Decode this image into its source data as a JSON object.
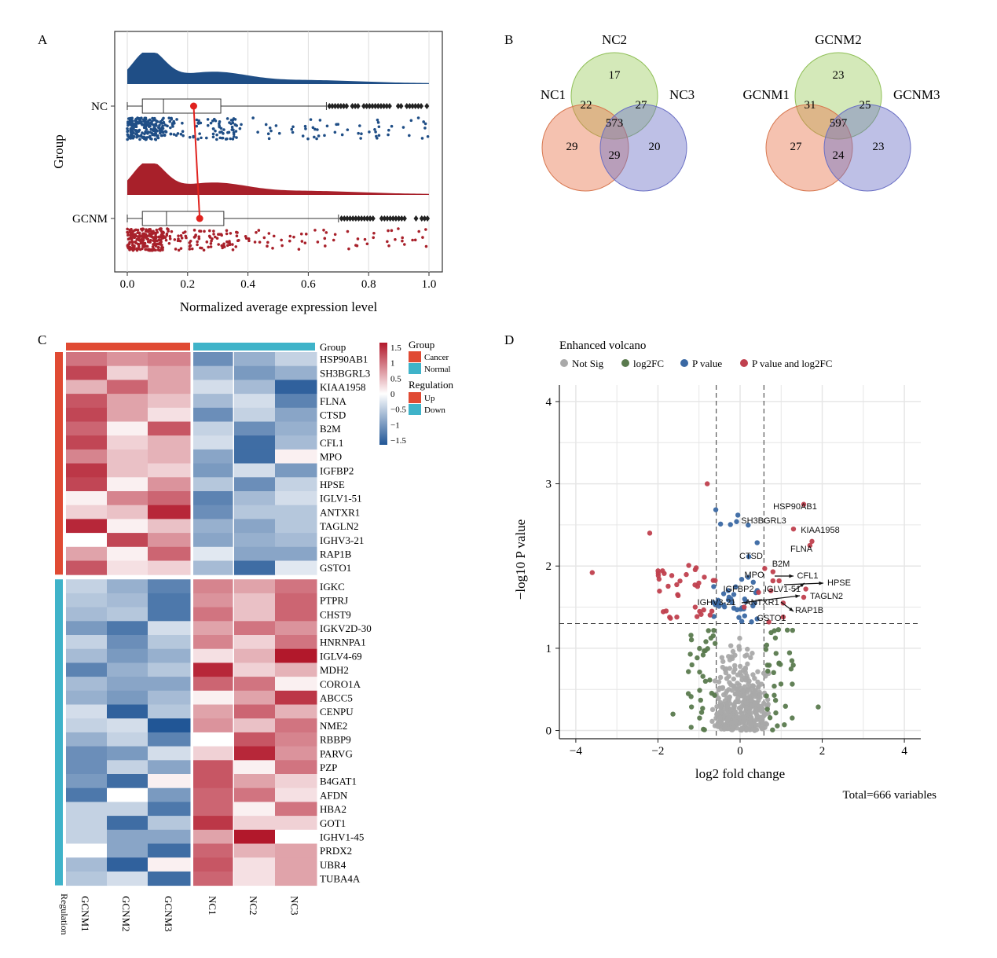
{
  "panels": {
    "a": "A",
    "b": "B",
    "c": "C",
    "d": "D"
  },
  "colors": {
    "nc": "#1f4e86",
    "gcnm": "#a8202a",
    "cancer": "#e04a33",
    "normal": "#3fb3c9",
    "up_red": "#c0303a",
    "down_blue": "#2b5c93",
    "not_sig": "#a9a9a9",
    "log2fc": "#5a7a4e",
    "pvalue": "#3a68a3",
    "both": "#c0404e"
  },
  "panel_a": {
    "chart_data": {
      "type": "raincloud",
      "xlabel": "Normalized average expression level",
      "ylabel": "Group",
      "xlim": [
        0.0,
        1.0
      ],
      "xticks": [
        "0.0",
        "0.2",
        "0.4",
        "0.6",
        "0.8",
        "1.0"
      ],
      "groups": [
        {
          "name": "NC",
          "box": {
            "min": 0.0,
            "q1": 0.05,
            "median": 0.12,
            "q3": 0.31,
            "whisker_high": 0.66
          },
          "mean": 0.22
        },
        {
          "name": "GCNM",
          "box": {
            "min": 0.0,
            "q1": 0.05,
            "median": 0.13,
            "q3": 0.32,
            "whisker_high": 0.7
          },
          "mean": 0.24
        }
      ],
      "grid": true
    }
  },
  "panel_b": {
    "chart_data": [
      {
        "type": "venn",
        "sets": [
          "NC1",
          "NC2",
          "NC3"
        ],
        "regions": {
          "only_2": 17,
          "1_2": 22,
          "2_3": 27,
          "all": 573,
          "only_1": 29,
          "1_3": 29,
          "only_3": 20
        }
      },
      {
        "type": "venn",
        "sets": [
          "GCNM1",
          "GCNM2",
          "GCNM3"
        ],
        "regions": {
          "only_2": 23,
          "1_2": 31,
          "2_3": 25,
          "all": 597,
          "only_1": 27,
          "1_3": 24,
          "only_3": 23
        }
      }
    ]
  },
  "panel_c": {
    "chart_data": {
      "type": "heatmap",
      "columns": [
        "GCNM1",
        "GCNM2",
        "GCNM3",
        "NC1",
        "NC2",
        "NC3"
      ],
      "column_groups": [
        "Cancer",
        "Cancer",
        "Cancer",
        "Normal",
        "Normal",
        "Normal"
      ],
      "rows": [
        "HSP90AB1",
        "SH3BGRL3",
        "KIAA1958",
        "FLNA",
        "CTSD",
        "B2M",
        "CFL1",
        "MPO",
        "IGFBP2",
        "HPSE",
        "IGLV1-51",
        "ANTXR1",
        "TAGLN2",
        "IGHV3-21",
        "RAP1B",
        "GSTO1",
        "IGKC",
        "PTPRJ",
        "CHST9",
        "IGKV2D-30",
        "HNRNPA1",
        "IGLV4-69",
        "MDH2",
        "CORO1A",
        "ABCC5",
        "CENPU",
        "NME2",
        "RBBP9",
        "PARVG",
        "PZP",
        "B4GAT1",
        "AFDN",
        "HBA2",
        "GOT1",
        "IGHV1-45",
        "PRDX2",
        "UBR4",
        "TUBA4A"
      ],
      "row_regulation_up_count": 16,
      "values": [
        [
          0.9,
          0.7,
          0.8,
          -1.0,
          -0.7,
          -0.4
        ],
        [
          1.2,
          0.3,
          0.6,
          -0.6,
          -0.9,
          -0.7
        ],
        [
          0.5,
          1.0,
          0.6,
          -0.3,
          -0.6,
          -1.4
        ],
        [
          1.1,
          0.6,
          0.4,
          -0.6,
          -0.3,
          -1.1
        ],
        [
          1.2,
          0.6,
          0.2,
          -1.0,
          -0.4,
          -0.8
        ],
        [
          1.0,
          0.1,
          1.1,
          -0.4,
          -1.0,
          -0.7
        ],
        [
          1.2,
          0.3,
          0.5,
          -0.3,
          -1.3,
          -0.6
        ],
        [
          0.8,
          0.4,
          0.5,
          -0.8,
          -1.3,
          0.1
        ],
        [
          1.3,
          0.4,
          0.3,
          -0.9,
          -0.3,
          -0.9
        ],
        [
          1.2,
          0.1,
          0.7,
          -0.5,
          -1.0,
          -0.4
        ],
        [
          0.1,
          0.8,
          1.0,
          -1.1,
          -0.6,
          -0.3
        ],
        [
          0.3,
          0.4,
          1.4,
          -1.0,
          -0.5,
          -0.5
        ],
        [
          1.4,
          0.1,
          0.4,
          -0.7,
          -0.8,
          -0.5
        ],
        [
          0.0,
          1.2,
          0.7,
          -0.8,
          -0.7,
          -0.6
        ],
        [
          0.6,
          0.1,
          1.0,
          -0.2,
          -0.8,
          -0.8
        ],
        [
          1.1,
          0.2,
          0.3,
          -0.6,
          -1.3,
          -0.2
        ],
        [
          -0.4,
          -0.7,
          -1.1,
          0.8,
          0.6,
          0.9
        ],
        [
          -0.5,
          -0.6,
          -1.2,
          0.7,
          0.4,
          1.0
        ],
        [
          -0.6,
          -0.5,
          -1.2,
          0.9,
          0.4,
          1.0
        ],
        [
          -0.9,
          -1.2,
          -0.3,
          0.6,
          0.9,
          0.7
        ],
        [
          -0.4,
          -1.0,
          -0.5,
          0.8,
          0.3,
          0.9
        ],
        [
          -0.6,
          -0.9,
          -0.7,
          0.2,
          0.5,
          1.5
        ],
        [
          -1.1,
          -0.7,
          -0.5,
          1.4,
          0.3,
          0.5
        ],
        [
          -0.6,
          -0.8,
          -0.8,
          1.0,
          0.9,
          0.1
        ],
        [
          -0.7,
          -0.9,
          -0.6,
          0.1,
          0.6,
          1.3
        ],
        [
          -0.3,
          -1.4,
          -0.5,
          0.6,
          1.0,
          0.5
        ],
        [
          -0.4,
          -0.3,
          -1.5,
          0.7,
          0.4,
          0.9
        ],
        [
          -0.7,
          -0.4,
          -1.1,
          0.0,
          1.1,
          0.8
        ],
        [
          -1.0,
          -0.9,
          -0.3,
          0.3,
          1.4,
          0.7
        ],
        [
          -1.0,
          -0.4,
          -0.8,
          1.1,
          0.1,
          0.9
        ],
        [
          -0.9,
          -1.3,
          0.1,
          1.1,
          0.6,
          0.3
        ],
        [
          -1.2,
          0.0,
          -0.9,
          1.0,
          0.9,
          0.2
        ],
        [
          -0.4,
          -0.4,
          -1.2,
          1.0,
          0.1,
          0.9
        ],
        [
          -0.4,
          -1.3,
          -0.5,
          1.3,
          0.3,
          0.3
        ],
        [
          -0.4,
          -0.8,
          -0.8,
          0.6,
          1.5,
          0.0
        ],
        [
          0.0,
          -0.8,
          -1.3,
          1.0,
          0.5,
          0.6
        ],
        [
          -0.6,
          -1.4,
          0.1,
          1.1,
          0.2,
          0.6
        ],
        [
          -0.5,
          -0.3,
          -1.3,
          1.0,
          0.2,
          0.6
        ]
      ],
      "colorbar": {
        "ticks": [
          "1.5",
          "1",
          "0.5",
          "0",
          "−0.5",
          "−1",
          "−1.5"
        ],
        "range": [
          -1.5,
          1.5
        ]
      },
      "legend": {
        "group_title": "Group",
        "group_items": [
          "Cancer",
          "Normal"
        ],
        "regulation_title": "Regulation",
        "regulation_items": [
          "Up",
          "Down"
        ],
        "group_header": "Group",
        "regulation_label": "Regulation"
      }
    }
  },
  "panel_d": {
    "chart_data": {
      "type": "scatter",
      "title": "Enhanced volcano",
      "legend": [
        "Not Sig",
        "log2FC",
        "P value",
        "P value and log2FC"
      ],
      "xlabel": "log2 fold change",
      "ylabel": "−log10 P value",
      "xlim": [
        -4.4,
        4.4
      ],
      "ylim": [
        -0.1,
        4.2
      ],
      "xticks": [
        -4,
        -2,
        0,
        2,
        4
      ],
      "yticks": [
        0,
        1,
        2,
        3,
        4
      ],
      "xtick_labels": [
        "−4",
        "−2",
        "0",
        "2",
        "4"
      ],
      "thresholds": {
        "x": [
          -0.58,
          0.58
        ],
        "y": 1.3
      },
      "footer": "Total=666 variables",
      "labels": [
        {
          "text": "HSP90AB1",
          "x": 1.55,
          "y": 2.75
        },
        {
          "text": "SH3BGRL3",
          "x": 1.3,
          "y": 2.45
        },
        {
          "text": "KIAA1958",
          "x": 1.75,
          "y": 2.3
        },
        {
          "text": "FLNA",
          "x": 1.7,
          "y": 2.25
        },
        {
          "text": "CTSD",
          "x": 0.6,
          "y": 1.97
        },
        {
          "text": "B2M",
          "x": 0.8,
          "y": 1.93
        },
        {
          "text": "MPO",
          "x": 0.8,
          "y": 1.82
        },
        {
          "text": "CFL1",
          "x": 0.95,
          "y": 1.82
        },
        {
          "text": "HPSE",
          "x": 1.6,
          "y": 1.72
        },
        {
          "text": "IGFBP2",
          "x": 0.45,
          "y": 1.68
        },
        {
          "text": "IGLV1-51",
          "x": 0.75,
          "y": 1.7
        },
        {
          "text": "TAGLN2",
          "x": 1.55,
          "y": 1.62
        },
        {
          "text": "IGHV3-21",
          "x": 0.1,
          "y": 1.5
        },
        {
          "text": "ANTXR1",
          "x": 1.05,
          "y": 1.55
        },
        {
          "text": "RAP1B",
          "x": 1.05,
          "y": 1.38
        },
        {
          "text": "GSTO1",
          "x": 0.7,
          "y": 1.32
        }
      ]
    }
  }
}
